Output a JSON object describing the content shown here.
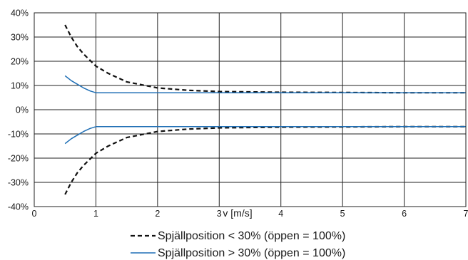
{
  "chart_data": {
    "type": "line",
    "title": "",
    "xlabel": "v [m/s]",
    "ylabel": "",
    "xlim": [
      0,
      7
    ],
    "ylim": [
      -40,
      40
    ],
    "x_ticks": [
      0,
      1,
      2,
      3,
      4,
      5,
      6,
      7
    ],
    "x_tick_labels": [
      "0",
      "1",
      "2",
      "3",
      "4",
      "5",
      "6",
      "7"
    ],
    "y_ticks": [
      -40,
      -30,
      -20,
      -10,
      0,
      10,
      20,
      30,
      40
    ],
    "y_tick_labels": [
      "-40%",
      "-30%",
      "-20%",
      "-10%",
      "0%",
      "10%",
      "20%",
      "30%",
      "40%"
    ],
    "grid": true,
    "legend_position": "bottom-center",
    "series": [
      {
        "name": "Spjällposition < 30% (öppen = 100%)",
        "style": "dashed",
        "color": "#111111",
        "x": [
          0.5,
          0.6,
          0.7,
          0.8,
          1.0,
          1.2,
          1.5,
          2.0,
          2.5,
          3.0,
          4.0,
          5.0,
          6.0,
          7.0
        ],
        "upper": [
          35,
          30,
          26,
          23,
          18,
          15,
          11.5,
          9,
          8,
          7.5,
          7.2,
          7.1,
          7.0,
          7.0
        ],
        "lower": [
          -35,
          -30,
          -26,
          -23,
          -18,
          -15,
          -11.5,
          -9,
          -8,
          -7.5,
          -7.2,
          -7.1,
          -7.0,
          -7.0
        ]
      },
      {
        "name": "Spjällposition > 30% (öppen = 100%)",
        "style": "solid",
        "color": "#1f6fb5",
        "x": [
          0.5,
          0.6,
          0.7,
          0.8,
          0.9,
          1.0,
          1.5,
          2.0,
          3.0,
          4.0,
          5.0,
          6.0,
          7.0
        ],
        "upper": [
          14,
          12,
          10.5,
          9,
          7.8,
          7,
          7,
          7,
          7,
          7,
          7,
          7,
          7
        ],
        "lower": [
          -14,
          -12,
          -10.5,
          -9,
          -7.8,
          -7,
          -7,
          -7,
          -7,
          -7,
          -7,
          -7,
          -7
        ]
      }
    ]
  }
}
